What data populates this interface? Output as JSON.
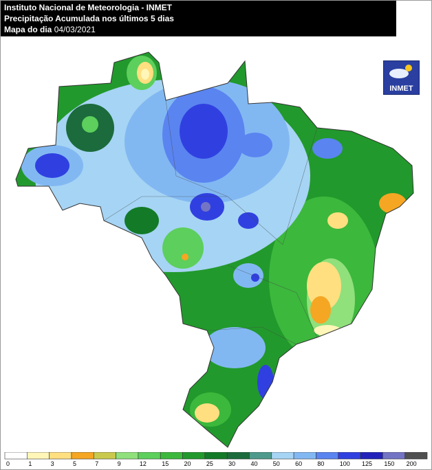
{
  "header": {
    "line1": "Instituto Nacional de Meteorologia - INMET",
    "line2": "Precipitação Acumulada nos últimos 5 dias",
    "line3_label": "Mapa do dia",
    "line3_date": "04/03/2021"
  },
  "logo": {
    "text": "INMET"
  },
  "legend": {
    "bounds": [
      0,
      1,
      3,
      5,
      7,
      9,
      12,
      15,
      20,
      25,
      30,
      40,
      50,
      60,
      80,
      100,
      125,
      150,
      200
    ],
    "colors": [
      "#ffffff",
      "#fff6b8",
      "#ffdf80",
      "#f5a623",
      "#c9c94e",
      "#90e07c",
      "#5ccf5c",
      "#3cb83c",
      "#22992c",
      "#137a28",
      "#1b6b3c",
      "#4e9a8c",
      "#a6d4f4",
      "#82b8f2",
      "#5a84f0",
      "#3040e0",
      "#2222bb",
      "#7474c4",
      "#505050"
    ]
  }
}
